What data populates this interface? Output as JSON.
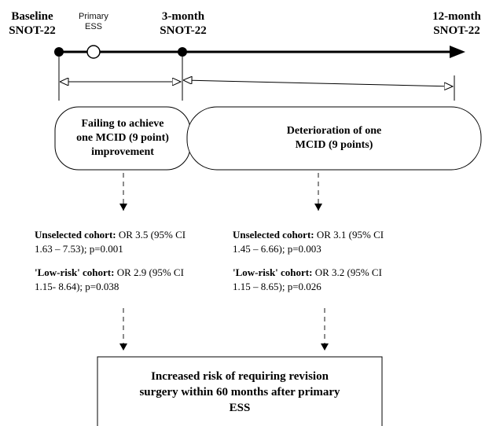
{
  "timeline": {
    "baseline": {
      "line1": "Baseline",
      "line2": "SNOT-22"
    },
    "primary": {
      "line1": "Primary",
      "line2": "ESS"
    },
    "three_month": {
      "line1": "3-month",
      "line2": "SNOT-22"
    },
    "twelve_month": {
      "line1": "12-month",
      "line2": "SNOT-22"
    }
  },
  "boxes": {
    "left": {
      "line1": "Failing to achieve",
      "line2": "one MCID (9 point)",
      "line3": "improvement"
    },
    "right": {
      "line1": "Deterioration of one",
      "line2": "MCID (9 points)"
    },
    "outcome": {
      "line1": "Increased risk of requiring revision",
      "line2": "surgery within 60 months after primary",
      "line3": "ESS"
    }
  },
  "stats": {
    "left": {
      "unselected_label": "Unselected cohort:",
      "unselected_line1": " OR 3.5 (95% CI",
      "unselected_line2": "1.63 – 7.53); p=0.001",
      "lowrisk_label": "'Low-risk' cohort:",
      "lowrisk_line1": " OR 2.9 (95% CI",
      "lowrisk_line2": "1.15- 8.64); p=0.038"
    },
    "right": {
      "unselected_label": "Unselected cohort:",
      "unselected_line1": " OR 3.1 (95% CI",
      "unselected_line2": "1.45 – 6.66); p=0.003",
      "lowrisk_label": "'Low-risk' cohort:",
      "lowrisk_line1": " OR 3.2 (95% CI",
      "lowrisk_line2": "1.15 – 8.65); p=0.026"
    }
  }
}
